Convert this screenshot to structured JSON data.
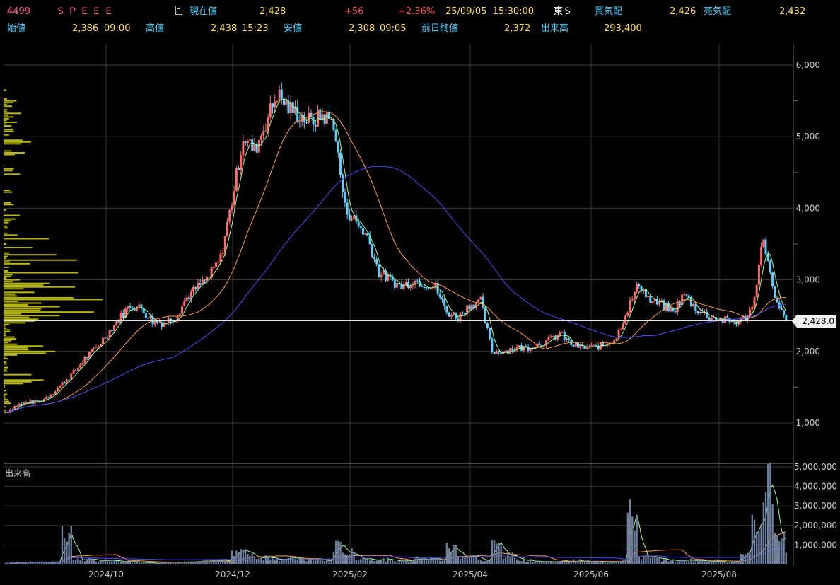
{
  "header": {
    "code": "4499",
    "name": "ＳＰＥＥＥ",
    "current_label": "現在値",
    "current_value": "2,428",
    "change": "+56",
    "change_pct": "+2.36%",
    "datetime": "25/09/05  15:30:00",
    "market": "東Ｓ",
    "bid_label": "買気配",
    "bid_value": "2,426",
    "ask_label": "売気配",
    "ask_value": "2,432",
    "open_label": "始値",
    "open_value": "2,386",
    "open_time": "09:00",
    "high_label": "高値",
    "high_value": "2,438",
    "high_time": "15:23",
    "low_label": "安値",
    "low_value": "2,308",
    "low_time": "09:05",
    "prev_close_label": "前日終値",
    "prev_close_value": "2,372",
    "volume_label": "出来高",
    "volume_value": "293,400"
  },
  "colors": {
    "up_candle": "#ff6b6b",
    "down_candle": "#5fd0ff",
    "ma_short": "#9dff9d",
    "ma_mid": "#ff9a4a",
    "ma_long": "#4b4bff",
    "volume_bar": "#6f7fa0",
    "volume_profile": "#b8b800"
  },
  "chart_data": {
    "type": "candlestick",
    "current_price_label": "2,428.0",
    "current_price": 2428,
    "price_axis": {
      "ticks": [
        1000,
        2000,
        3000,
        4000,
        5000,
        6000
      ],
      "tick_labels": [
        "1,000",
        "2,000",
        "3,000",
        "4,000",
        "5,000",
        "6,000"
      ]
    },
    "volume_axis": {
      "title": "出来高",
      "ticks": [
        1000000,
        2000000,
        3000000,
        4000000,
        5000000
      ],
      "tick_labels": [
        "1,000,000",
        "2,000,000",
        "3,000,000",
        "4,000,000",
        "5,000,000"
      ]
    },
    "x_labels": [
      "2024/10",
      "2024/12",
      "2025/02",
      "2025/04",
      "2025/06",
      "2025/08"
    ],
    "weekly_close": [
      1150,
      1250,
      1290,
      1300,
      1400,
      1550,
      1700,
      1900,
      2050,
      2250,
      2450,
      2650,
      2600,
      2420,
      2400,
      2480,
      2750,
      2900,
      3050,
      3300,
      4100,
      5000,
      4800,
      5200,
      5600,
      5400,
      5300,
      5200,
      5300,
      5200,
      4000,
      3800,
      3600,
      3100,
      3000,
      2900,
      3000,
      2950,
      2900,
      2550,
      2480,
      2650,
      2700,
      2000,
      2000,
      2050,
      2050,
      2100,
      2150,
      2250,
      2100,
      2050,
      2050,
      2100,
      2200,
      2600,
      2950,
      2700,
      2650,
      2550,
      2800,
      2600,
      2500,
      2450,
      2420,
      2420,
      2600,
      3600,
      2700,
      2428
    ],
    "weekly_volume": [
      80000,
      100000,
      120000,
      120000,
      120000,
      1750000,
      260000,
      240000,
      200000,
      180000,
      150000,
      150000,
      120000,
      100000,
      100000,
      120000,
      120000,
      150000,
      200000,
      200000,
      700000,
      600000,
      400000,
      400000,
      300000,
      300000,
      250000,
      250000,
      200000,
      900000,
      600000,
      350000,
      300000,
      250000,
      200000,
      200000,
      300000,
      300000,
      250000,
      850000,
      450000,
      400000,
      200000,
      1000000,
      450000,
      300000,
      200000,
      150000,
      150000,
      150000,
      200000,
      150000,
      150000,
      150000,
      200000,
      2450000,
      400000,
      300000,
      250000,
      200000,
      250000,
      200000,
      200000,
      150000,
      150000,
      450000,
      1900000,
      4400000,
      1600000,
      600000
    ]
  }
}
